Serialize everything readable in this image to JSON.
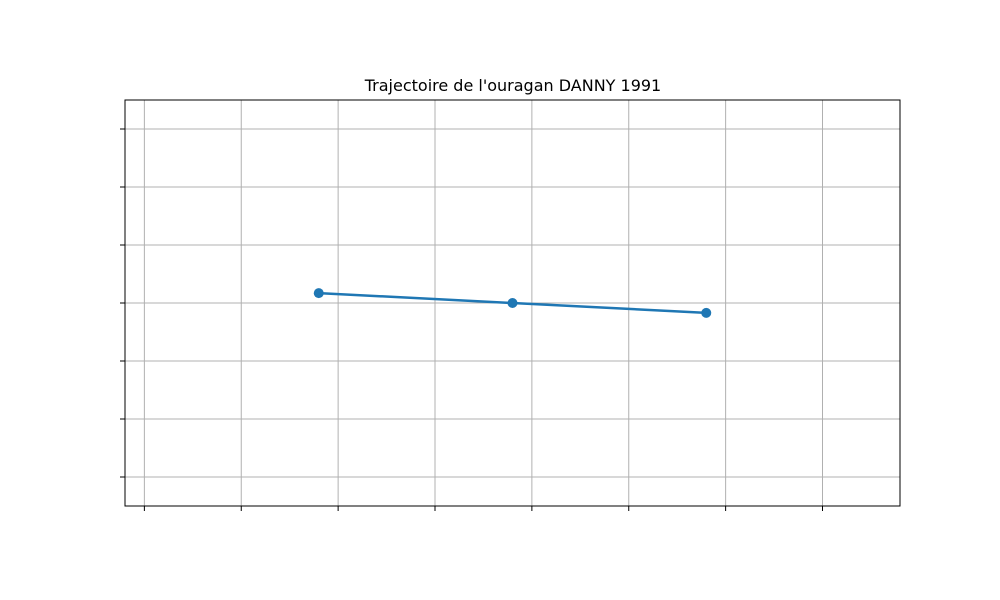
{
  "chart_data": {
    "type": "line",
    "title": "Trajectoire de l'ouragan DANNY 1991",
    "xlabel": "",
    "ylabel": "",
    "xlim": [
      0,
      4
    ],
    "ylim": [
      0,
      7
    ],
    "x_gridlines": [
      0.1,
      0.6,
      1.1,
      1.6,
      2.1,
      2.6,
      3.1,
      3.6
    ],
    "y_gridlines": [
      0.5,
      1.5,
      2.5,
      3.5,
      4.5,
      5.5,
      6.5
    ],
    "grid": true,
    "show_tick_labels": false,
    "series": [
      {
        "x": [
          1.0,
          2.0,
          3.0
        ],
        "y": [
          3.67,
          3.5,
          3.33
        ],
        "marker": "circle",
        "color": "#1f77b4"
      }
    ]
  }
}
